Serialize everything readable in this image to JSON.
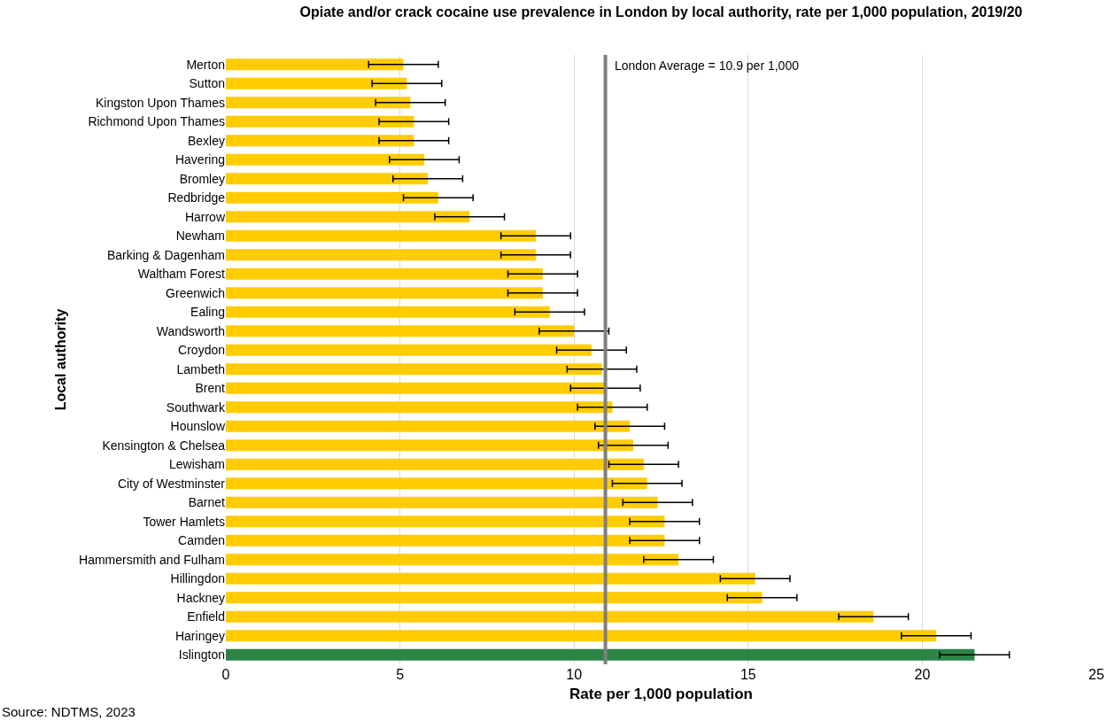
{
  "chart_data": {
    "type": "bar",
    "orientation": "horizontal",
    "title": "Opiate and/or crack cocaine use prevalence in London by local authority, rate per 1,000 population, 2019/20",
    "xlabel": "Rate per 1,000 population",
    "ylabel": "Local authority",
    "categories": [
      "Merton",
      "Sutton",
      "Kingston Upon Thames",
      "Richmond Upon Thames",
      "Bexley",
      "Havering",
      "Bromley",
      "Redbridge",
      "Harrow",
      "Newham",
      "Barking & Dagenham",
      "Waltham Forest",
      "Greenwich",
      "Ealing",
      "Wandsworth",
      "Croydon",
      "Lambeth",
      "Brent",
      "Southwark",
      "Hounslow",
      "Kensington & Chelsea",
      "Lewisham",
      "City of Westminster",
      "Barnet",
      "Tower Hamlets",
      "Camden",
      "Hammersmith and Fulham",
      "Hillingdon",
      "Hackney",
      "Enfield",
      "Haringey",
      "Islington"
    ],
    "values": [
      5.1,
      5.2,
      5.3,
      5.4,
      5.4,
      5.7,
      5.8,
      6.1,
      7.0,
      8.9,
      8.9,
      9.1,
      9.1,
      9.3,
      10.0,
      10.5,
      10.8,
      10.9,
      11.1,
      11.6,
      11.7,
      12.0,
      12.1,
      12.4,
      12.6,
      12.6,
      13.0,
      15.2,
      15.4,
      18.6,
      20.4,
      21.5
    ],
    "errors": [
      1,
      1,
      1,
      1,
      1,
      1,
      1,
      1,
      1,
      1,
      1,
      1,
      1,
      1,
      1,
      1,
      1,
      1,
      1,
      1,
      1,
      1,
      1,
      1,
      1,
      1,
      1,
      1,
      1,
      1,
      1,
      1
    ],
    "colors": [
      "#ffcc00",
      "#ffcc00",
      "#ffcc00",
      "#ffcc00",
      "#ffcc00",
      "#ffcc00",
      "#ffcc00",
      "#ffcc00",
      "#ffcc00",
      "#ffcc00",
      "#ffcc00",
      "#ffcc00",
      "#ffcc00",
      "#ffcc00",
      "#ffcc00",
      "#ffcc00",
      "#ffcc00",
      "#ffcc00",
      "#ffcc00",
      "#ffcc00",
      "#ffcc00",
      "#ffcc00",
      "#ffcc00",
      "#ffcc00",
      "#ffcc00",
      "#ffcc00",
      "#ffcc00",
      "#ffcc00",
      "#ffcc00",
      "#ffcc00",
      "#ffcc00",
      "#2a8547"
    ],
    "xlim": [
      0,
      25
    ],
    "xticks": [
      0,
      5,
      10,
      15,
      20,
      25
    ],
    "grid": "x",
    "ref_lines": [
      {
        "axis": "x",
        "value": 10.9,
        "label": "London Average = 10.9 per 1,000",
        "color": "#7f7f7f"
      }
    ],
    "annotations": [
      "Source: NDTMS, 2023"
    ]
  }
}
